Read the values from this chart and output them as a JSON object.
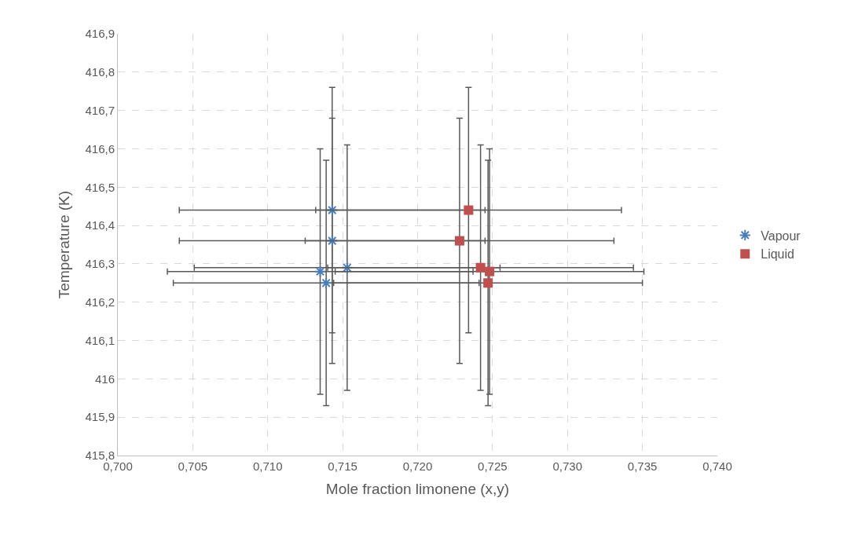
{
  "chart_data": {
    "type": "scatter",
    "xlabel": "Mole fraction limonene (x,y)",
    "ylabel": "Temperature (K)",
    "series": [
      {
        "name": "Vapour",
        "color": "#4a7ebb",
        "marker": "cross",
        "x": [
          0.7143,
          0.7143,
          0.7153,
          0.7135,
          0.7139
        ],
        "values": [
          416.44,
          416.36,
          416.29,
          416.28,
          416.25
        ],
        "errors": [
          0.32,
          0.32,
          0.32,
          0.32,
          0.32
        ],
        "xerrors": [
          0.0102,
          0.0102,
          0.0102,
          0.0102,
          0.0102
        ]
      },
      {
        "name": "Liquid",
        "color": "#c0504d",
        "marker": "square",
        "x": [
          0.7234,
          0.7228,
          0.7242,
          0.7248,
          0.7247
        ],
        "values": [
          416.44,
          416.36,
          416.29,
          416.28,
          416.25
        ],
        "errors": [
          0.32,
          0.32,
          0.32,
          0.32,
          0.32
        ],
        "xerrors": [
          0.0102,
          0.0103,
          0.0102,
          0.0103,
          0.0103
        ]
      }
    ],
    "xlim": [
      0.7,
      0.74
    ],
    "xticks": [
      {
        "value": 0.7,
        "label": "0,700"
      },
      {
        "value": 0.705,
        "label": "0,705"
      },
      {
        "value": 0.71,
        "label": "0,710"
      },
      {
        "value": 0.715,
        "label": "0,715"
      },
      {
        "value": 0.72,
        "label": "0,720"
      },
      {
        "value": 0.725,
        "label": "0,725"
      },
      {
        "value": 0.73,
        "label": "0,730"
      },
      {
        "value": 0.735,
        "label": "0,735"
      },
      {
        "value": 0.74,
        "label": "0,740"
      }
    ],
    "ylim": [
      415.8,
      416.9
    ],
    "yticks": [
      {
        "value": 415.8,
        "label": "415,8"
      },
      {
        "value": 415.9,
        "label": "415,9"
      },
      416,
      {
        "value": 416.1,
        "label": "416,1"
      },
      {
        "value": 416.2,
        "label": "416,2"
      },
      {
        "value": 416.3,
        "label": "416,3"
      },
      {
        "value": 416.4,
        "label": "416,4"
      },
      {
        "value": 416.5,
        "label": "416,5"
      },
      {
        "value": 416.6,
        "label": "416,6"
      },
      {
        "value": 416.7,
        "label": "416,7"
      },
      {
        "value": 416.8,
        "label": "416,8"
      },
      {
        "value": 416.9,
        "label": "416,9"
      }
    ],
    "grid": true,
    "legend": "right"
  }
}
